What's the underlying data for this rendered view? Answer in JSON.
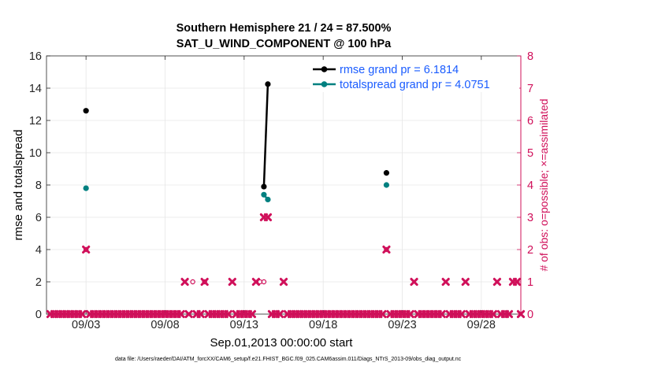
{
  "chart_data": {
    "type": "scatter",
    "title": "Southern Hemisphere 21 / 24 = 87.500%",
    "subtitle": "SAT_U_WIND_COMPONENT @ 100 hPa",
    "xlabel": "Sep.01,2013 00:00:00 start",
    "ylabel": "rmse and totalspread",
    "y2label": "# of obs: o=possible; ×=assimilated",
    "footnote": "data file: /Users/raeder/DAI/ATM_forcXX/CAM6_setup/f.e21.FHIST_BGC.f09_025.CAM6assim.011/Diags_NTrS_2013-09/obs_diag_output.nc",
    "xlim": [
      0.5,
      30.5
    ],
    "ylim": [
      0,
      16
    ],
    "y2lim": [
      0,
      8
    ],
    "x_ticks": [
      3,
      8,
      13,
      18,
      23,
      28
    ],
    "x_tick_labels": [
      "09/03",
      "09/08",
      "09/13",
      "09/18",
      "09/23",
      "09/28"
    ],
    "y_ticks": [
      0,
      2,
      4,
      6,
      8,
      10,
      12,
      14,
      16
    ],
    "y2_ticks": [
      0,
      1,
      2,
      3,
      4,
      5,
      6,
      7,
      8
    ],
    "grid": true,
    "legend_position": "top-right",
    "series": [
      {
        "name": "rmse grand pr = 6.1814",
        "axis": "left",
        "color": "#000000",
        "segments": [
          [
            [
              3.0,
              12.6
            ]
          ],
          [
            [
              14.25,
              7.9
            ],
            [
              14.5,
              14.25
            ]
          ],
          [
            [
              22.0,
              8.75
            ]
          ]
        ]
      },
      {
        "name": "totalspread grand pr = 4.0751",
        "axis": "left",
        "color": "#008080",
        "segments": [
          [
            [
              3.0,
              7.8
            ]
          ],
          [
            [
              14.25,
              7.4
            ],
            [
              14.5,
              7.1
            ]
          ],
          [
            [
              22.0,
              8.0
            ]
          ]
        ]
      },
      {
        "name": "obs possible",
        "axis": "right",
        "marker": "o",
        "color": "#d0105a",
        "points": [
          [
            3.0,
            2
          ],
          [
            9.75,
            1
          ],
          [
            10.5,
            1
          ],
          [
            14.0,
            1
          ],
          [
            14.25,
            1
          ],
          [
            22.0,
            2
          ]
        ]
      },
      {
        "name": "obs assimilated",
        "axis": "right",
        "marker": "x",
        "color": "#d0105a",
        "points": [
          [
            3.0,
            2
          ],
          [
            9.25,
            1
          ],
          [
            10.5,
            1
          ],
          [
            12.25,
            1
          ],
          [
            13.75,
            1
          ],
          [
            14.25,
            3
          ],
          [
            14.5,
            3
          ],
          [
            15.5,
            1
          ],
          [
            22.0,
            2
          ],
          [
            23.75,
            1
          ],
          [
            25.75,
            1
          ],
          [
            27.0,
            1
          ],
          [
            29.0,
            1
          ],
          [
            30.0,
            1
          ],
          [
            30.25,
            1
          ]
        ],
        "zero_points": [
          0.75,
          1.0,
          1.25,
          1.5,
          1.75,
          2.0,
          2.25,
          2.5,
          2.75,
          3.25,
          3.5,
          3.75,
          4.0,
          4.25,
          4.5,
          4.75,
          5.0,
          5.25,
          5.5,
          5.75,
          6.0,
          6.25,
          6.5,
          6.75,
          7.0,
          7.25,
          7.5,
          7.75,
          8.0,
          8.25,
          8.5,
          8.75,
          9.0,
          9.5,
          10.0,
          10.25,
          10.75,
          11.0,
          11.25,
          11.5,
          11.75,
          12.0,
          12.5,
          12.75,
          13.0,
          13.25,
          13.5,
          14.75,
          15.0,
          15.25,
          15.75,
          16.0,
          16.25,
          16.5,
          16.75,
          17.0,
          17.25,
          17.5,
          17.75,
          18.0,
          18.25,
          18.5,
          18.75,
          19.0,
          19.25,
          19.5,
          19.75,
          20.0,
          20.25,
          20.5,
          20.75,
          21.0,
          21.25,
          21.5,
          21.75,
          22.25,
          22.5,
          22.75,
          23.0,
          23.25,
          23.5,
          24.0,
          24.25,
          24.5,
          24.75,
          25.0,
          25.25,
          25.5,
          26.0,
          26.25,
          26.5,
          26.75,
          27.25,
          27.5,
          27.75,
          28.0,
          28.25,
          28.5,
          28.75,
          29.25,
          29.5,
          29.75,
          30.5
        ]
      }
    ]
  }
}
